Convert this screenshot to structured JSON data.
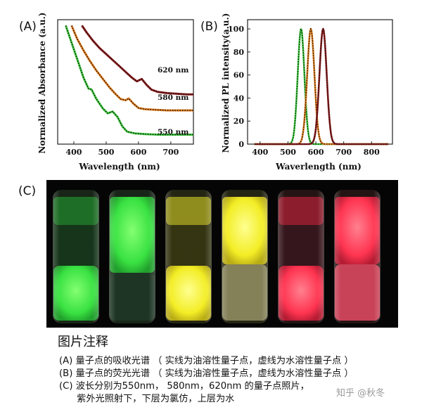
{
  "panels": {
    "a": "(A)",
    "b": "(B)",
    "c": "(C)"
  },
  "chart_data": [
    {
      "type": "line",
      "xlabel": "Wavelength (nm)",
      "ylabel": "Normalized Absorbance (a.u.)",
      "xlim": [
        350,
        770
      ],
      "x_ticks": [
        400,
        500,
        600,
        700
      ],
      "grid": false,
      "legend": "none",
      "series": [
        {
          "name": "620 nm",
          "color": "#8b1a1a",
          "x": [
            425,
            440,
            460,
            480,
            500,
            520,
            540,
            560,
            580,
            595,
            610,
            625,
            640,
            660,
            690,
            720,
            750,
            770
          ],
          "y": [
            10.0,
            9.4,
            8.7,
            8.1,
            7.6,
            7.1,
            6.6,
            6.1,
            5.6,
            5.3,
            5.5,
            5.0,
            4.6,
            4.4,
            4.3,
            4.25,
            4.2,
            4.2
          ]
        },
        {
          "name": "580 nm",
          "color": "#e07b1a",
          "x": [
            393,
            410,
            430,
            450,
            470,
            490,
            510,
            530,
            545,
            560,
            570,
            585,
            600,
            620,
            650,
            690,
            730,
            770
          ],
          "y": [
            10.0,
            8.9,
            7.9,
            7.0,
            6.2,
            5.5,
            4.8,
            4.2,
            3.8,
            3.7,
            3.85,
            3.4,
            3.05,
            2.95,
            2.9,
            2.85,
            2.85,
            2.85
          ]
        },
        {
          "name": "550 nm",
          "color": "#3cc83c",
          "x": [
            375,
            390,
            410,
            430,
            445,
            455,
            470,
            490,
            505,
            520,
            535,
            550,
            565,
            590,
            620,
            660,
            710,
            770
          ],
          "y": [
            10.0,
            8.8,
            7.2,
            5.6,
            4.7,
            4.6,
            3.8,
            3.0,
            2.6,
            2.75,
            2.3,
            1.5,
            1.05,
            0.9,
            0.85,
            0.8,
            0.8,
            0.8
          ]
        }
      ]
    },
    {
      "type": "line",
      "xlabel": "Waverlength (nm)",
      "ylabel": "Normalized PL intensity(a.u.)",
      "xlim": [
        355,
        875
      ],
      "ylim": [
        0,
        108
      ],
      "x_ticks": [
        400,
        500,
        600,
        700,
        800
      ],
      "y_ticks": [
        0,
        20,
        40,
        60,
        80,
        100
      ],
      "grid": false,
      "legend": "none",
      "series": [
        {
          "color": "#3cc83c",
          "peak": 547,
          "sigma": 12,
          "amplitude": 100
        },
        {
          "color": "#e07b1a",
          "peak": 582,
          "sigma": 13,
          "amplitude": 100
        },
        {
          "color": "#8b1a1a",
          "peak": 626,
          "sigma": 13,
          "amplitude": 100
        }
      ]
    }
  ],
  "caption": {
    "title": "图片注释",
    "lines": [
      "(A) 量子点的吸收光谱 （ 实线为油溶性量子点，虚线为水溶性量子点 ）",
      "(B) 量子点的荧光光谱 （ 实线为油溶性量子点，虚线为水溶性量子点 ）",
      "(C) 波长分别为550nm， 580nm，620nm 的量子点照片，",
      "      紫外光照射下，下层为氯仿，上层为水"
    ]
  },
  "watermark": "知乎 @秋冬"
}
